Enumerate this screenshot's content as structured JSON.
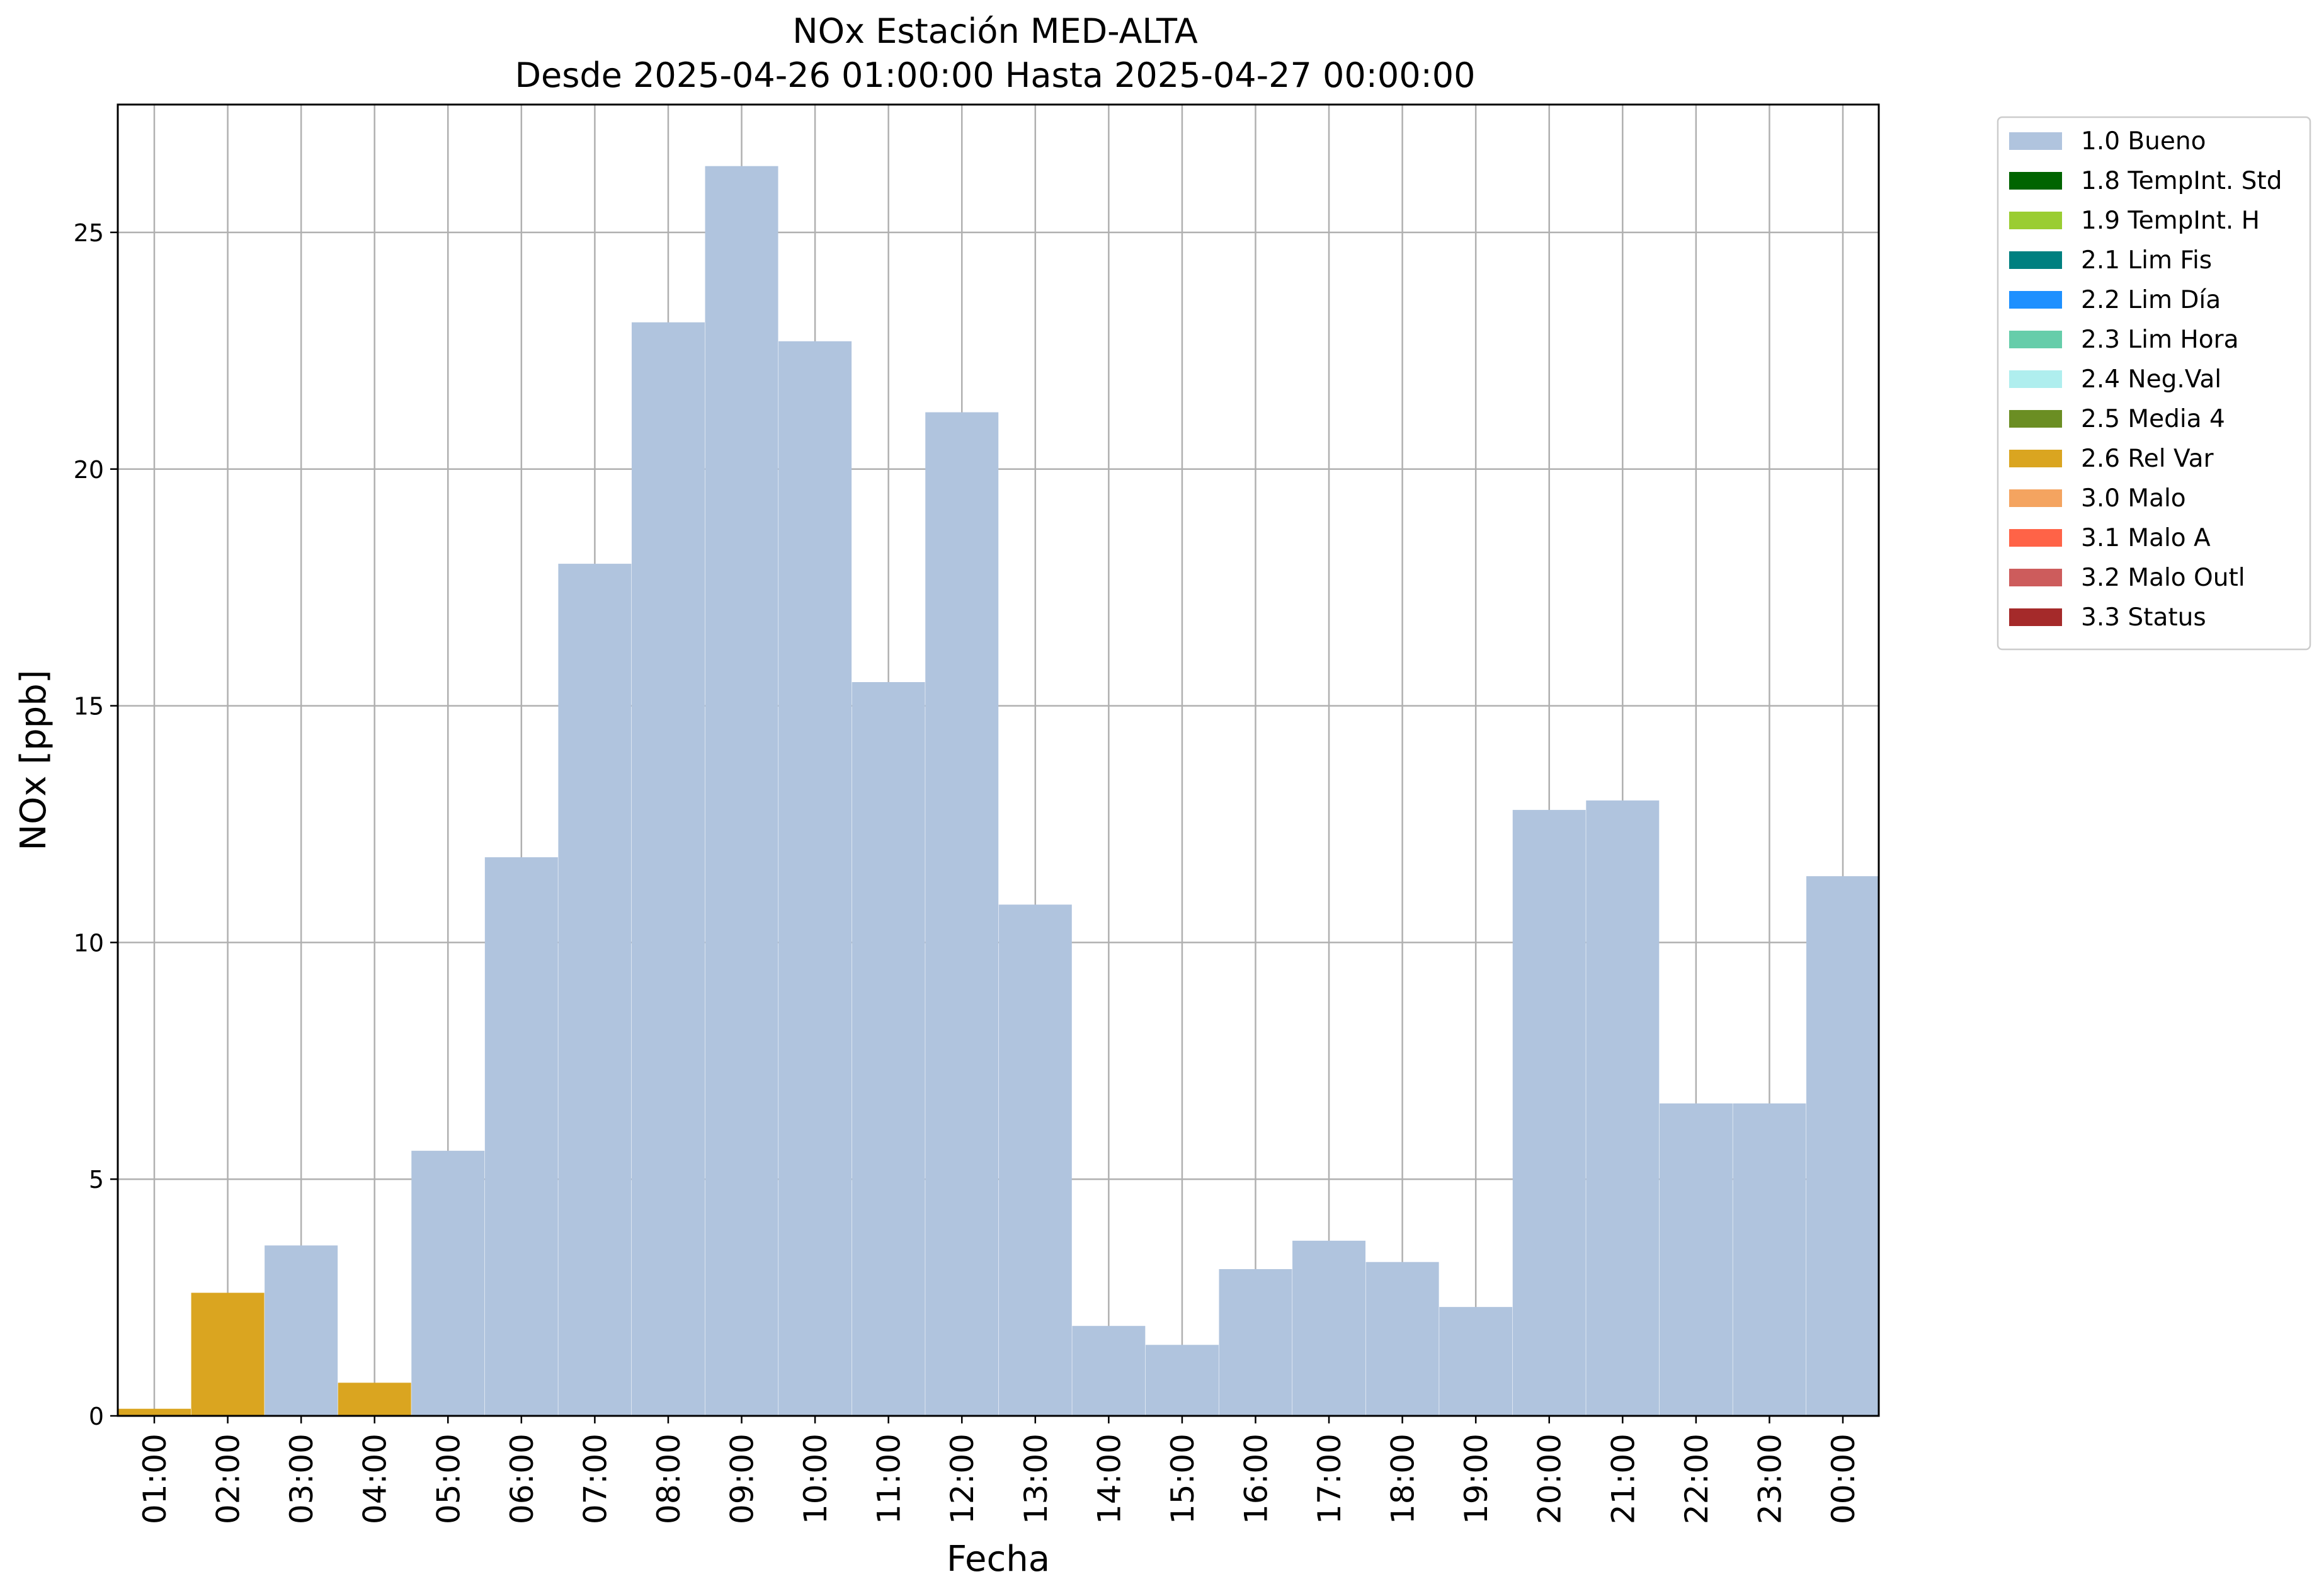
{
  "chart_data": {
    "type": "bar",
    "title": "NOx Estación MED-ALTA",
    "subtitle": "Desde 2025-04-26 01:00:00 Hasta 2025-04-27 00:00:00",
    "xlabel": "Fecha",
    "ylabel": "NOx [ppb]",
    "ylim": [
      0,
      27.7
    ],
    "yticks": [
      0,
      5,
      10,
      15,
      20,
      25
    ],
    "grid": true,
    "legend_position": "outside-top-right",
    "categories": [
      "01:00",
      "02:00",
      "03:00",
      "04:00",
      "05:00",
      "06:00",
      "07:00",
      "08:00",
      "09:00",
      "10:00",
      "11:00",
      "12:00",
      "13:00",
      "14:00",
      "15:00",
      "16:00",
      "17:00",
      "18:00",
      "19:00",
      "20:00",
      "21:00",
      "22:00",
      "23:00",
      "00:00"
    ],
    "values": [
      0.15,
      2.6,
      3.6,
      0.7,
      5.6,
      11.8,
      18.0,
      23.1,
      26.4,
      22.7,
      15.5,
      21.2,
      10.8,
      1.9,
      1.5,
      3.1,
      3.7,
      3.25,
      2.3,
      12.8,
      13.0,
      6.6,
      6.6,
      11.4
    ],
    "flags": [
      "2.6 Rel Var",
      "2.6 Rel Var",
      "1.0 Bueno",
      "2.6 Rel Var",
      "1.0 Bueno",
      "1.0 Bueno",
      "1.0 Bueno",
      "1.0 Bueno",
      "1.0 Bueno",
      "1.0 Bueno",
      "1.0 Bueno",
      "1.0 Bueno",
      "1.0 Bueno",
      "1.0 Bueno",
      "1.0 Bueno",
      "1.0 Bueno",
      "1.0 Bueno",
      "1.0 Bueno",
      "1.0 Bueno",
      "1.0 Bueno",
      "1.0 Bueno",
      "1.0 Bueno",
      "1.0 Bueno",
      "1.0 Bueno"
    ],
    "legend": [
      {
        "label": "1.0 Bueno",
        "color": "#b0c4de"
      },
      {
        "label": "1.8 TempInt. Std",
        "color": "#006400"
      },
      {
        "label": "1.9 TempInt. H",
        "color": "#9acd32"
      },
      {
        "label": "2.1 Lim Fis",
        "color": "#008080"
      },
      {
        "label": "2.2 Lim Día",
        "color": "#1e90ff"
      },
      {
        "label": "2.3 Lim Hora",
        "color": "#66cdaa"
      },
      {
        "label": "2.4 Neg.Val",
        "color": "#afeeee"
      },
      {
        "label": "2.5 Media 4",
        "color": "#6b8e23"
      },
      {
        "label": "2.6 Rel Var",
        "color": "#daa520"
      },
      {
        "label": "3.0 Malo",
        "color": "#f4a460"
      },
      {
        "label": "3.1 Malo A",
        "color": "#ff6347"
      },
      {
        "label": "3.2 Malo Outl",
        "color": "#cd5c5c"
      },
      {
        "label": "3.3 Status",
        "color": "#a52a2a"
      }
    ]
  }
}
